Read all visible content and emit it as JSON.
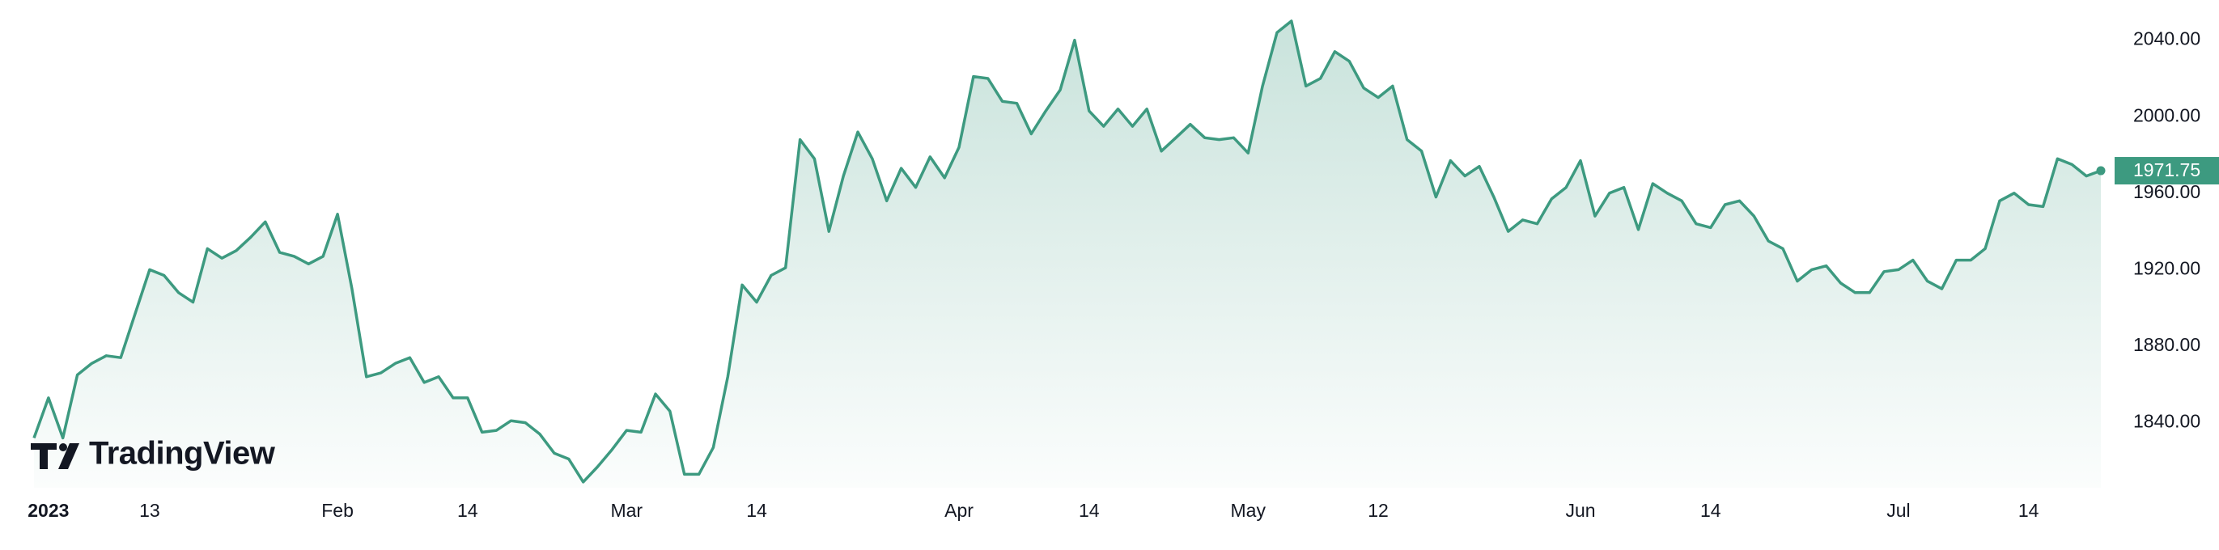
{
  "chart_data": {
    "type": "area",
    "logo_text": "TradingView",
    "categories": [
      null,
      "2023",
      null,
      null,
      null,
      null,
      null,
      null,
      "13",
      null,
      null,
      null,
      null,
      null,
      null,
      null,
      null,
      null,
      null,
      null,
      null,
      "Feb",
      null,
      null,
      null,
      null,
      null,
      null,
      null,
      null,
      "14",
      null,
      null,
      null,
      null,
      null,
      null,
      null,
      null,
      null,
      null,
      "Mar",
      null,
      null,
      null,
      null,
      null,
      null,
      null,
      null,
      "14",
      null,
      null,
      null,
      null,
      null,
      null,
      null,
      null,
      null,
      null,
      null,
      null,
      null,
      "Apr",
      null,
      null,
      null,
      null,
      null,
      null,
      null,
      null,
      "14",
      null,
      null,
      null,
      null,
      null,
      null,
      null,
      null,
      null,
      null,
      "May",
      null,
      null,
      null,
      null,
      null,
      null,
      null,
      null,
      "12",
      null,
      null,
      null,
      null,
      null,
      null,
      null,
      null,
      null,
      null,
      null,
      null,
      null,
      "Jun",
      null,
      null,
      null,
      null,
      null,
      null,
      null,
      null,
      "14",
      null,
      null,
      null,
      null,
      null,
      null,
      null,
      null,
      null,
      null,
      null,
      null,
      "Jul",
      null,
      null,
      null,
      null,
      null,
      null,
      null,
      null,
      "14",
      null,
      null,
      null,
      null,
      null
    ],
    "series": [
      {
        "color": "#3d9a80",
        "values": [
          1832,
          1853,
          1832,
          1865,
          1871,
          1875,
          1874,
          1897,
          1920,
          1917,
          1908,
          1903,
          1931,
          1926,
          1930,
          1937,
          1945,
          1929,
          1927,
          1923,
          1927,
          1949,
          1910,
          1864,
          1866,
          1871,
          1874,
          1861,
          1864,
          1853,
          1853,
          1835,
          1836,
          1841,
          1840,
          1834,
          1824,
          1821,
          1809,
          1817,
          1826,
          1836,
          1835,
          1855,
          1846,
          1813,
          1813,
          1827,
          1864,
          1912,
          1903,
          1917,
          1921,
          1988,
          1978,
          1940,
          1969,
          1992,
          1978,
          1956,
          1973,
          1963,
          1979,
          1968,
          1984,
          2021,
          2020,
          2008,
          2007,
          1991,
          2003,
          2014,
          2040,
          2003,
          1995,
          2004,
          1995,
          2004,
          1982,
          1989,
          1996,
          1989,
          1988,
          1989,
          1981,
          2016,
          2044,
          2050,
          2016,
          2020,
          2034,
          2029,
          2015,
          2010,
          2016,
          1988,
          1982,
          1958,
          1977,
          1969,
          1974,
          1958,
          1940,
          1946,
          1944,
          1957,
          1963,
          1977,
          1948,
          1960,
          1963,
          1941,
          1965,
          1960,
          1956,
          1944,
          1942,
          1954,
          1956,
          1948,
          1935,
          1931,
          1914,
          1920,
          1922,
          1913,
          1908,
          1908,
          1919,
          1920,
          1925,
          1914,
          1910,
          1925,
          1925,
          1931,
          1956,
          1960,
          1954,
          1953,
          1978,
          1975,
          1969,
          1971.75
        ]
      }
    ],
    "ylim": [
      1806,
      2061
    ],
    "yticks": [
      {
        "value": 1840,
        "label": "1840.00"
      },
      {
        "value": 1880,
        "label": "1880.00"
      },
      {
        "value": 1920,
        "label": "1920.00"
      },
      {
        "value": 1960,
        "label": "1960.00"
      },
      {
        "value": 2000,
        "label": "2000.00"
      },
      {
        "value": 2040,
        "label": "2040.00"
      }
    ],
    "grid": false
  }
}
